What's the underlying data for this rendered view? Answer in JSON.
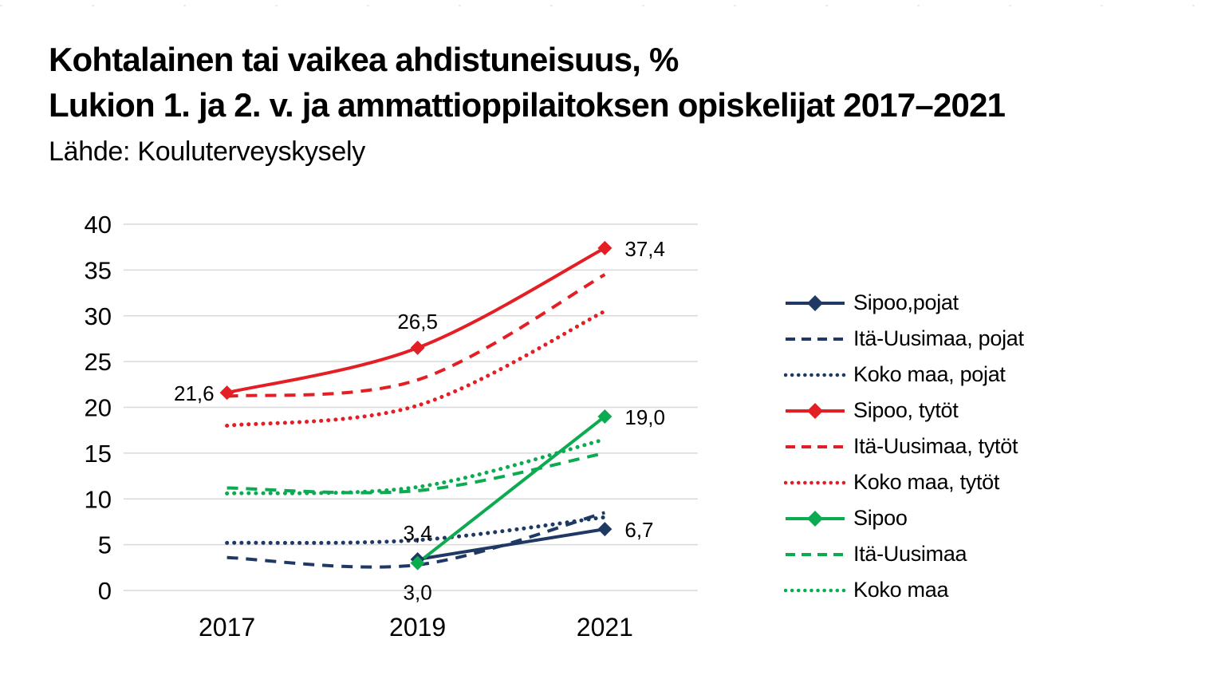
{
  "header": {
    "title_line1": "Kohtalainen tai vaikea ahdistuneisuus, %",
    "title_line2": "Lukion 1. ja 2. v. ja ammattioppilaitoksen opiskelijat 2017–2021",
    "source": "Lähde: Kouluterveyskysely"
  },
  "chart_data": {
    "type": "line",
    "x_labels": [
      "2017",
      "2019",
      "2021"
    ],
    "y_ticks": [
      0,
      5,
      10,
      15,
      20,
      25,
      30,
      35,
      40
    ],
    "ylim": [
      0,
      40
    ],
    "grid": true,
    "grid_color": "#d9d9d9",
    "text_color": "#000000",
    "legend_position": "right",
    "series": [
      {
        "name": "Sipoo,pojat",
        "color": "#1f3864",
        "style": "solid",
        "marker": "diamond",
        "values": [
          null,
          3.4,
          6.7
        ]
      },
      {
        "name": "Itä-Uusimaa, pojat",
        "color": "#1f3864",
        "style": "dashed",
        "marker": "none",
        "values": [
          3.6,
          2.8,
          8.5
        ]
      },
      {
        "name": "Koko maa, pojat",
        "color": "#1f3864",
        "style": "dotted",
        "marker": "none",
        "values": [
          5.2,
          5.5,
          8.0
        ]
      },
      {
        "name": "Sipoo, tytöt",
        "color": "#e41e25",
        "style": "solid",
        "marker": "diamond",
        "values": [
          21.6,
          26.5,
          37.4
        ]
      },
      {
        "name": "Itä-Uusimaa, tytöt",
        "color": "#e41e25",
        "style": "dashed",
        "marker": "none",
        "values": [
          21.2,
          23.0,
          34.5
        ]
      },
      {
        "name": "Koko maa, tytöt",
        "color": "#e41e25",
        "style": "dotted",
        "marker": "none",
        "values": [
          18.0,
          20.2,
          30.5
        ]
      },
      {
        "name": "Sipoo",
        "color": "#0cab52",
        "style": "solid",
        "marker": "diamond",
        "values": [
          null,
          3.0,
          19.0
        ]
      },
      {
        "name": "Itä-Uusimaa",
        "color": "#0cab52",
        "style": "dashed",
        "marker": "none",
        "values": [
          11.2,
          10.9,
          15.0
        ]
      },
      {
        "name": "Koko maa",
        "color": "#0cab52",
        "style": "dotted",
        "marker": "none",
        "values": [
          10.6,
          11.3,
          16.5
        ]
      }
    ],
    "annotations": [
      {
        "text": "21,6",
        "series": "Sipoo, tytöt",
        "xi": 0,
        "placement": "left"
      },
      {
        "text": "26,5",
        "series": "Sipoo, tytöt",
        "xi": 1,
        "placement": "above"
      },
      {
        "text": "37,4",
        "series": "Sipoo, tytöt",
        "xi": 2,
        "placement": "right"
      },
      {
        "text": "3,4",
        "series": "Sipoo,pojat",
        "xi": 1,
        "placement": "above"
      },
      {
        "text": "6,7",
        "series": "Sipoo,pojat",
        "xi": 2,
        "placement": "right"
      },
      {
        "text": "3,0",
        "series": "Sipoo",
        "xi": 1,
        "placement": "below"
      },
      {
        "text": "19,0",
        "series": "Sipoo",
        "xi": 2,
        "placement": "right"
      }
    ]
  }
}
